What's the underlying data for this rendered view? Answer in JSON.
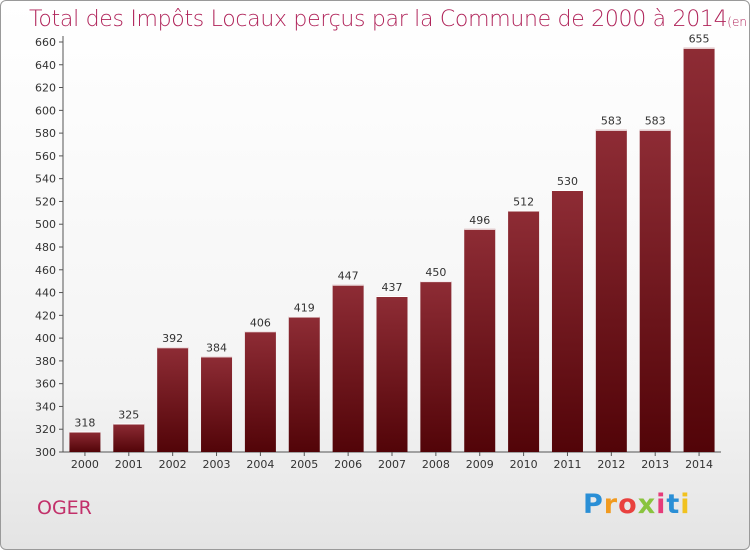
{
  "chart_data": {
    "type": "bar",
    "title": "Total des Impôts Locaux perçus par la Commune de 2000 à 2014",
    "unit": "(en milliers d'€)",
    "categories": [
      "2000",
      "2001",
      "2002",
      "2003",
      "2004",
      "2005",
      "2006",
      "2007",
      "2008",
      "2009",
      "2010",
      "2011",
      "2012",
      "2013",
      "2014"
    ],
    "values": [
      318,
      325,
      392,
      384,
      406,
      419,
      447,
      437,
      450,
      496,
      512,
      530,
      583,
      583,
      655
    ],
    "ylim": [
      300,
      660
    ],
    "ytick_step": 20,
    "grid": false,
    "bar_color": "#7a1520"
  },
  "commune": "OGER",
  "logo": {
    "letters": [
      "P",
      "r",
      "o",
      "x",
      "i",
      "t",
      "i"
    ],
    "colors": [
      "#2a8fd6",
      "#f19a1f",
      "#e9413f",
      "#8ac43f",
      "#e63b7a",
      "#2a8fd6",
      "#f1c21f"
    ]
  }
}
